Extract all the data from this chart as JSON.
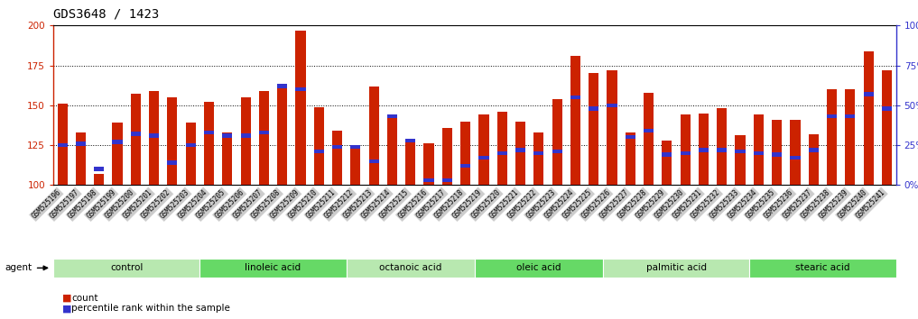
{
  "title": "GDS3648 / 1423",
  "samples": [
    "GSM525196",
    "GSM525197",
    "GSM525198",
    "GSM525199",
    "GSM525200",
    "GSM525201",
    "GSM525202",
    "GSM525203",
    "GSM525204",
    "GSM525205",
    "GSM525206",
    "GSM525207",
    "GSM525208",
    "GSM525209",
    "GSM525210",
    "GSM525211",
    "GSM525212",
    "GSM525213",
    "GSM525214",
    "GSM525215",
    "GSM525216",
    "GSM525217",
    "GSM525218",
    "GSM525219",
    "GSM525220",
    "GSM525221",
    "GSM525222",
    "GSM525223",
    "GSM525224",
    "GSM525225",
    "GSM525226",
    "GSM525227",
    "GSM525228",
    "GSM525229",
    "GSM525230",
    "GSM525231",
    "GSM525232",
    "GSM525233",
    "GSM525234",
    "GSM525235",
    "GSM525236",
    "GSM525237",
    "GSM525238",
    "GSM525239",
    "GSM525240",
    "GSM525241"
  ],
  "counts": [
    151,
    133,
    107,
    139,
    157,
    159,
    155,
    139,
    152,
    133,
    155,
    159,
    161,
    197,
    149,
    134,
    125,
    162,
    143,
    127,
    126,
    136,
    140,
    144,
    146,
    140,
    133,
    154,
    181,
    170,
    172,
    133,
    158,
    128,
    144,
    145,
    148,
    131,
    144,
    141,
    141,
    132,
    160,
    160,
    184,
    172
  ],
  "percentile_pct": [
    25,
    26,
    10,
    27,
    32,
    31,
    14,
    25,
    33,
    31,
    31,
    33,
    62,
    60,
    21,
    24,
    24,
    15,
    43,
    28,
    3,
    3,
    12,
    17,
    20,
    22,
    20,
    21,
    55,
    48,
    50,
    30,
    34,
    19,
    20,
    22,
    22,
    21,
    20,
    19,
    17,
    22,
    43,
    43,
    57,
    48
  ],
  "groups": [
    {
      "label": "control",
      "start": 0,
      "end": 7,
      "color": "#b8e8b0"
    },
    {
      "label": "linoleic acid",
      "start": 8,
      "end": 15,
      "color": "#66d966"
    },
    {
      "label": "octanoic acid",
      "start": 16,
      "end": 22,
      "color": "#b8e8b0"
    },
    {
      "label": "oleic acid",
      "start": 23,
      "end": 29,
      "color": "#66d966"
    },
    {
      "label": "palmitic acid",
      "start": 30,
      "end": 37,
      "color": "#b8e8b0"
    },
    {
      "label": "stearic acid",
      "start": 38,
      "end": 45,
      "color": "#66d966"
    }
  ],
  "bar_color": "#cc2200",
  "dot_color": "#3333cc",
  "ylim_left": [
    100,
    200
  ],
  "ylim_right": [
    0,
    100
  ],
  "yticks_left": [
    100,
    125,
    150,
    175,
    200
  ],
  "yticks_right": [
    0,
    25,
    50,
    75,
    100
  ],
  "background_color": "#ffffff",
  "plot_bg_color": "#ffffff",
  "xtick_bg_color": "#cccccc",
  "title_fontsize": 10,
  "tick_fontsize": 5.5,
  "group_label_fontsize": 7.5
}
